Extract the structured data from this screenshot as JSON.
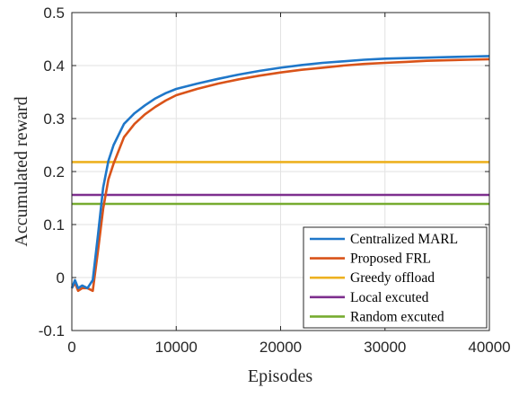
{
  "chart_data": {
    "type": "line",
    "xlabel": "Episodes",
    "ylabel": "Accumulated reward",
    "xlim": [
      0,
      40000
    ],
    "ylim": [
      -0.1,
      0.5
    ],
    "xticks": [
      0,
      10000,
      20000,
      30000,
      40000
    ],
    "xtick_labels": [
      "0",
      "10000",
      "20000",
      "30000",
      "40000"
    ],
    "yticks": [
      -0.1,
      0,
      0.1,
      0.2,
      0.3,
      0.4,
      0.5
    ],
    "ytick_labels": [
      "-0.1",
      "0",
      "0.1",
      "0.2",
      "0.3",
      "0.4",
      "0.5"
    ],
    "grid": true,
    "legend_position": "bottom-right",
    "series": [
      {
        "name": "Centralized MARL",
        "color": "#1f77c9",
        "x": [
          0,
          300,
          600,
          1000,
          1500,
          2000,
          2500,
          3000,
          3500,
          4000,
          4500,
          5000,
          6000,
          7000,
          8000,
          9000,
          10000,
          12000,
          14000,
          16000,
          18000,
          20000,
          22000,
          24000,
          26000,
          28000,
          30000,
          32000,
          34000,
          36000,
          38000,
          40000
        ],
        "y": [
          -0.02,
          -0.005,
          -0.02,
          -0.015,
          -0.02,
          -0.005,
          0.08,
          0.17,
          0.22,
          0.25,
          0.27,
          0.29,
          0.31,
          0.325,
          0.338,
          0.348,
          0.356,
          0.366,
          0.375,
          0.383,
          0.39,
          0.396,
          0.401,
          0.405,
          0.408,
          0.411,
          0.413,
          0.414,
          0.415,
          0.416,
          0.417,
          0.418
        ]
      },
      {
        "name": "Proposed FRL",
        "color": "#d95319",
        "x": [
          0,
          300,
          600,
          1000,
          1500,
          2000,
          2500,
          3000,
          3500,
          4000,
          4500,
          5000,
          6000,
          7000,
          8000,
          9000,
          10000,
          12000,
          14000,
          16000,
          18000,
          20000,
          22000,
          24000,
          26000,
          28000,
          30000,
          32000,
          34000,
          36000,
          38000,
          40000
        ],
        "y": [
          -0.02,
          -0.01,
          -0.025,
          -0.02,
          -0.02,
          -0.025,
          0.05,
          0.13,
          0.185,
          0.215,
          0.24,
          0.265,
          0.29,
          0.308,
          0.322,
          0.334,
          0.344,
          0.356,
          0.366,
          0.374,
          0.381,
          0.387,
          0.392,
          0.396,
          0.4,
          0.403,
          0.405,
          0.407,
          0.409,
          0.41,
          0.411,
          0.412
        ]
      },
      {
        "name": "Greedy offload",
        "color": "#edb120",
        "x": [
          0,
          40000
        ],
        "y": [
          0.218,
          0.218
        ]
      },
      {
        "name": "Local excuted",
        "color": "#7e2f8e",
        "x": [
          0,
          40000
        ],
        "y": [
          0.156,
          0.156
        ]
      },
      {
        "name": "Random excuted",
        "color": "#77ac30",
        "x": [
          0,
          40000
        ],
        "y": [
          0.139,
          0.139
        ]
      }
    ]
  }
}
